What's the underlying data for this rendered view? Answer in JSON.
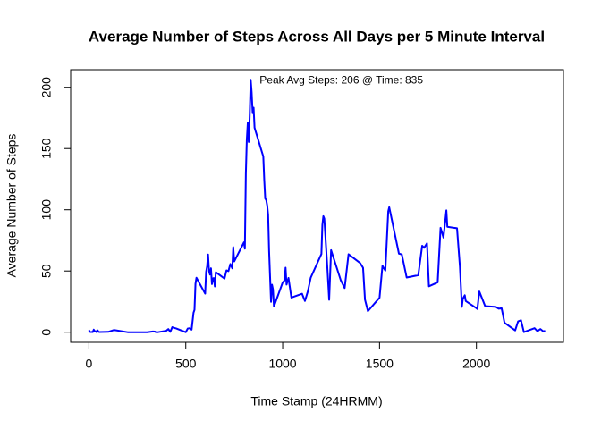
{
  "chart_data": {
    "type": "line",
    "title": "Average Number of Steps Across All Days per 5 Minute Interval",
    "xlabel": "Time Stamp (24HRMM)",
    "ylabel": "Average Number of Steps",
    "annotation": "Peak Avg Steps: 206 @ Time: 835",
    "xlim": [
      -94.2,
      2449.2
    ],
    "xticks": [
      0,
      500,
      1000,
      1500,
      2000
    ],
    "ylim": [
      -8.25,
      214.4
    ],
    "yticks": [
      0,
      50,
      100,
      150,
      200
    ],
    "series": [
      {
        "color": "#0000ff",
        "x": [
          0,
          5,
          10,
          15,
          20,
          25,
          30,
          35,
          40,
          45,
          50,
          55,
          100,
          130,
          200,
          230,
          300,
          330,
          340,
          345,
          350,
          355,
          400,
          410,
          420,
          430,
          440,
          450,
          500,
          510,
          520,
          530,
          540,
          545,
          550,
          555,
          600,
          605,
          610,
          615,
          620,
          625,
          630,
          635,
          640,
          645,
          650,
          655,
          700,
          710,
          720,
          730,
          740,
          745,
          750,
          800,
          805,
          810,
          815,
          820,
          825,
          830,
          835,
          840,
          845,
          850,
          855,
          900,
          905,
          910,
          915,
          920,
          925,
          930,
          935,
          940,
          945,
          950,
          955,
          1000,
          1010,
          1015,
          1020,
          1030,
          1045,
          1100,
          1115,
          1130,
          1145,
          1200,
          1205,
          1210,
          1215,
          1230,
          1240,
          1250,
          1300,
          1320,
          1340,
          1400,
          1415,
          1425,
          1440,
          1500,
          1515,
          1530,
          1545,
          1550,
          1600,
          1615,
          1640,
          1700,
          1720,
          1730,
          1745,
          1755,
          1800,
          1815,
          1830,
          1845,
          1850,
          1900,
          1915,
          1925,
          1930,
          1940,
          1945,
          2000,
          2005,
          2015,
          2030,
          2045,
          2100,
          2115,
          2130,
          2145,
          2200,
          2215,
          2230,
          2245,
          2300,
          2315,
          2330,
          2345,
          2355
        ],
        "values": [
          1.7,
          0.3,
          0.1,
          0.2,
          0.1,
          2.1,
          0.5,
          0.9,
          0,
          1.5,
          0.3,
          0.1,
          0.3,
          1.8,
          0,
          0,
          0,
          0.6,
          0.5,
          0.1,
          0,
          0,
          1.2,
          2.6,
          0.3,
          4.1,
          3.5,
          3.1,
          0,
          3,
          3.3,
          2.1,
          16,
          18.3,
          39.5,
          44.5,
          31.5,
          49.3,
          53.8,
          63.5,
          50,
          47.1,
          52.2,
          39.3,
          44,
          44.2,
          37.4,
          49,
          43.8,
          50.5,
          49.9,
          55.7,
          52.2,
          69.5,
          57.8,
          73.4,
          68.2,
          129.4,
          157.5,
          171.2,
          155.4,
          177.3,
          206.2,
          195.9,
          179.6,
          183.4,
          167,
          143.5,
          124,
          109.1,
          108.1,
          103.7,
          95.9,
          66.2,
          45.2,
          24.8,
          38.8,
          35,
          21,
          40.6,
          42.4,
          52.7,
          38.9,
          44.3,
          28.3,
          31.4,
          25.5,
          33.4,
          44.6,
          63.9,
          87.6,
          94.8,
          92.8,
          54.5,
          26.5,
          67,
          42.4,
          36.1,
          63.7,
          56.5,
          52.6,
          26.5,
          17.2,
          28.2,
          54.2,
          50.3,
          98.7,
          102.1,
          64.2,
          63.5,
          44.7,
          46.6,
          70.6,
          68.9,
          72.6,
          37.5,
          40.7,
          85.3,
          77.3,
          99.5,
          86.1,
          84.9,
          53.4,
          20.7,
          27.4,
          30.2,
          25.5,
          19.6,
          19,
          33.3,
          27.3,
          21.3,
          20.7,
          19.2,
          19.6,
          7.8,
          1.5,
          8.9,
          9.8,
          0.1,
          3.3,
          0.8,
          2.6,
          0.7,
          1.1
        ]
      }
    ]
  }
}
